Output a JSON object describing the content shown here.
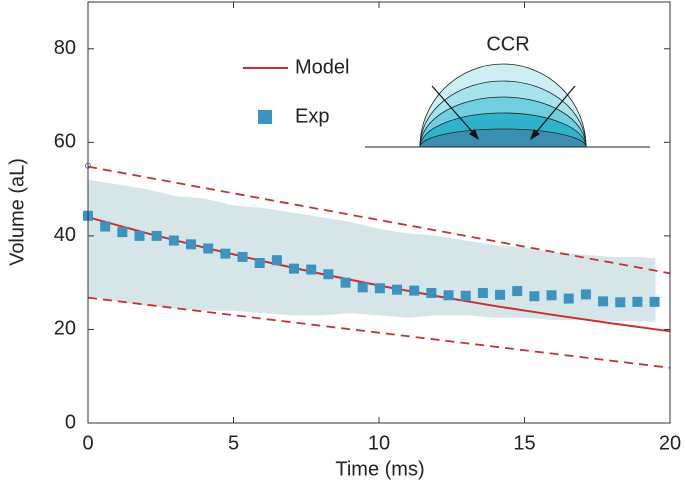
{
  "chart_data": {
    "type": "line",
    "xlabel": "Time (ms)",
    "ylabel": "Volume (aL)",
    "xlim": [
      0,
      20
    ],
    "ylim": [
      0,
      90
    ],
    "xticks": [
      0,
      5,
      10,
      15,
      20
    ],
    "yticks": [
      0,
      20,
      40,
      60,
      80
    ],
    "annotation": "CCR",
    "series": [
      {
        "type": "band",
        "color": "#d6e6e8",
        "x": [
          0,
          1,
          2,
          3,
          4,
          5,
          6,
          7,
          8,
          9,
          10,
          11,
          12,
          13,
          14,
          15,
          16,
          17,
          18,
          19,
          19.5
        ],
        "values": [
          52,
          51,
          50,
          48.5,
          48,
          46.5,
          46,
          45,
          44,
          43,
          41.5,
          40.5,
          40,
          39,
          38,
          37.5,
          36.5,
          36,
          35.5,
          35.5,
          35.2
        ],
        "lower": [
          27,
          26,
          25,
          24.5,
          24,
          24,
          23.5,
          23,
          23,
          23.5,
          23,
          22.5,
          23,
          23,
          22.5,
          22.5,
          22,
          22,
          21.8,
          21.8,
          21.5
        ]
      },
      {
        "type": "dashed",
        "color": "#c8312f",
        "x": [
          0,
          20
        ],
        "values": [
          54.8,
          32
        ]
      },
      {
        "type": "dashed",
        "color": "#c8312f",
        "x": [
          0,
          20
        ],
        "values": [
          26.8,
          11.8
        ]
      },
      {
        "name": "Model",
        "type": "line",
        "color": "#c8312f",
        "x": [
          0,
          2,
          4,
          6,
          8,
          10,
          12,
          14,
          16,
          18,
          20
        ],
        "values": [
          44,
          40.6,
          37.5,
          34.6,
          31.9,
          29.4,
          27.1,
          25.0,
          23.1,
          21.3,
          19.6
        ]
      },
      {
        "name": "Exp",
        "type": "scatter",
        "color": "#3a93c0",
        "x": [
          0,
          0.59,
          1.18,
          1.77,
          2.36,
          2.95,
          3.54,
          4.13,
          4.72,
          5.31,
          5.9,
          6.49,
          7.08,
          7.67,
          8.26,
          8.85,
          9.44,
          10.03,
          10.62,
          11.21,
          11.8,
          12.39,
          12.98,
          13.57,
          14.16,
          14.75,
          15.34,
          15.93,
          16.52,
          17.11,
          17.7,
          18.29,
          18.88,
          19.47
        ],
        "values": [
          44.3,
          42,
          40.8,
          40,
          40,
          39,
          38.2,
          37.3,
          36.2,
          35.5,
          34.2,
          34.8,
          33,
          32.8,
          31.8,
          30,
          29,
          28.8,
          28.5,
          28.3,
          27.8,
          27.3,
          27.2,
          27.8,
          27.4,
          28.2,
          27.1,
          27.3,
          26.6,
          27.5,
          26,
          25.8,
          25.9,
          25.9
        ]
      },
      {
        "type": "marker",
        "color": "#8a5ab5",
        "x": [
          0
        ],
        "values": [
          55
        ]
      }
    ]
  }
}
